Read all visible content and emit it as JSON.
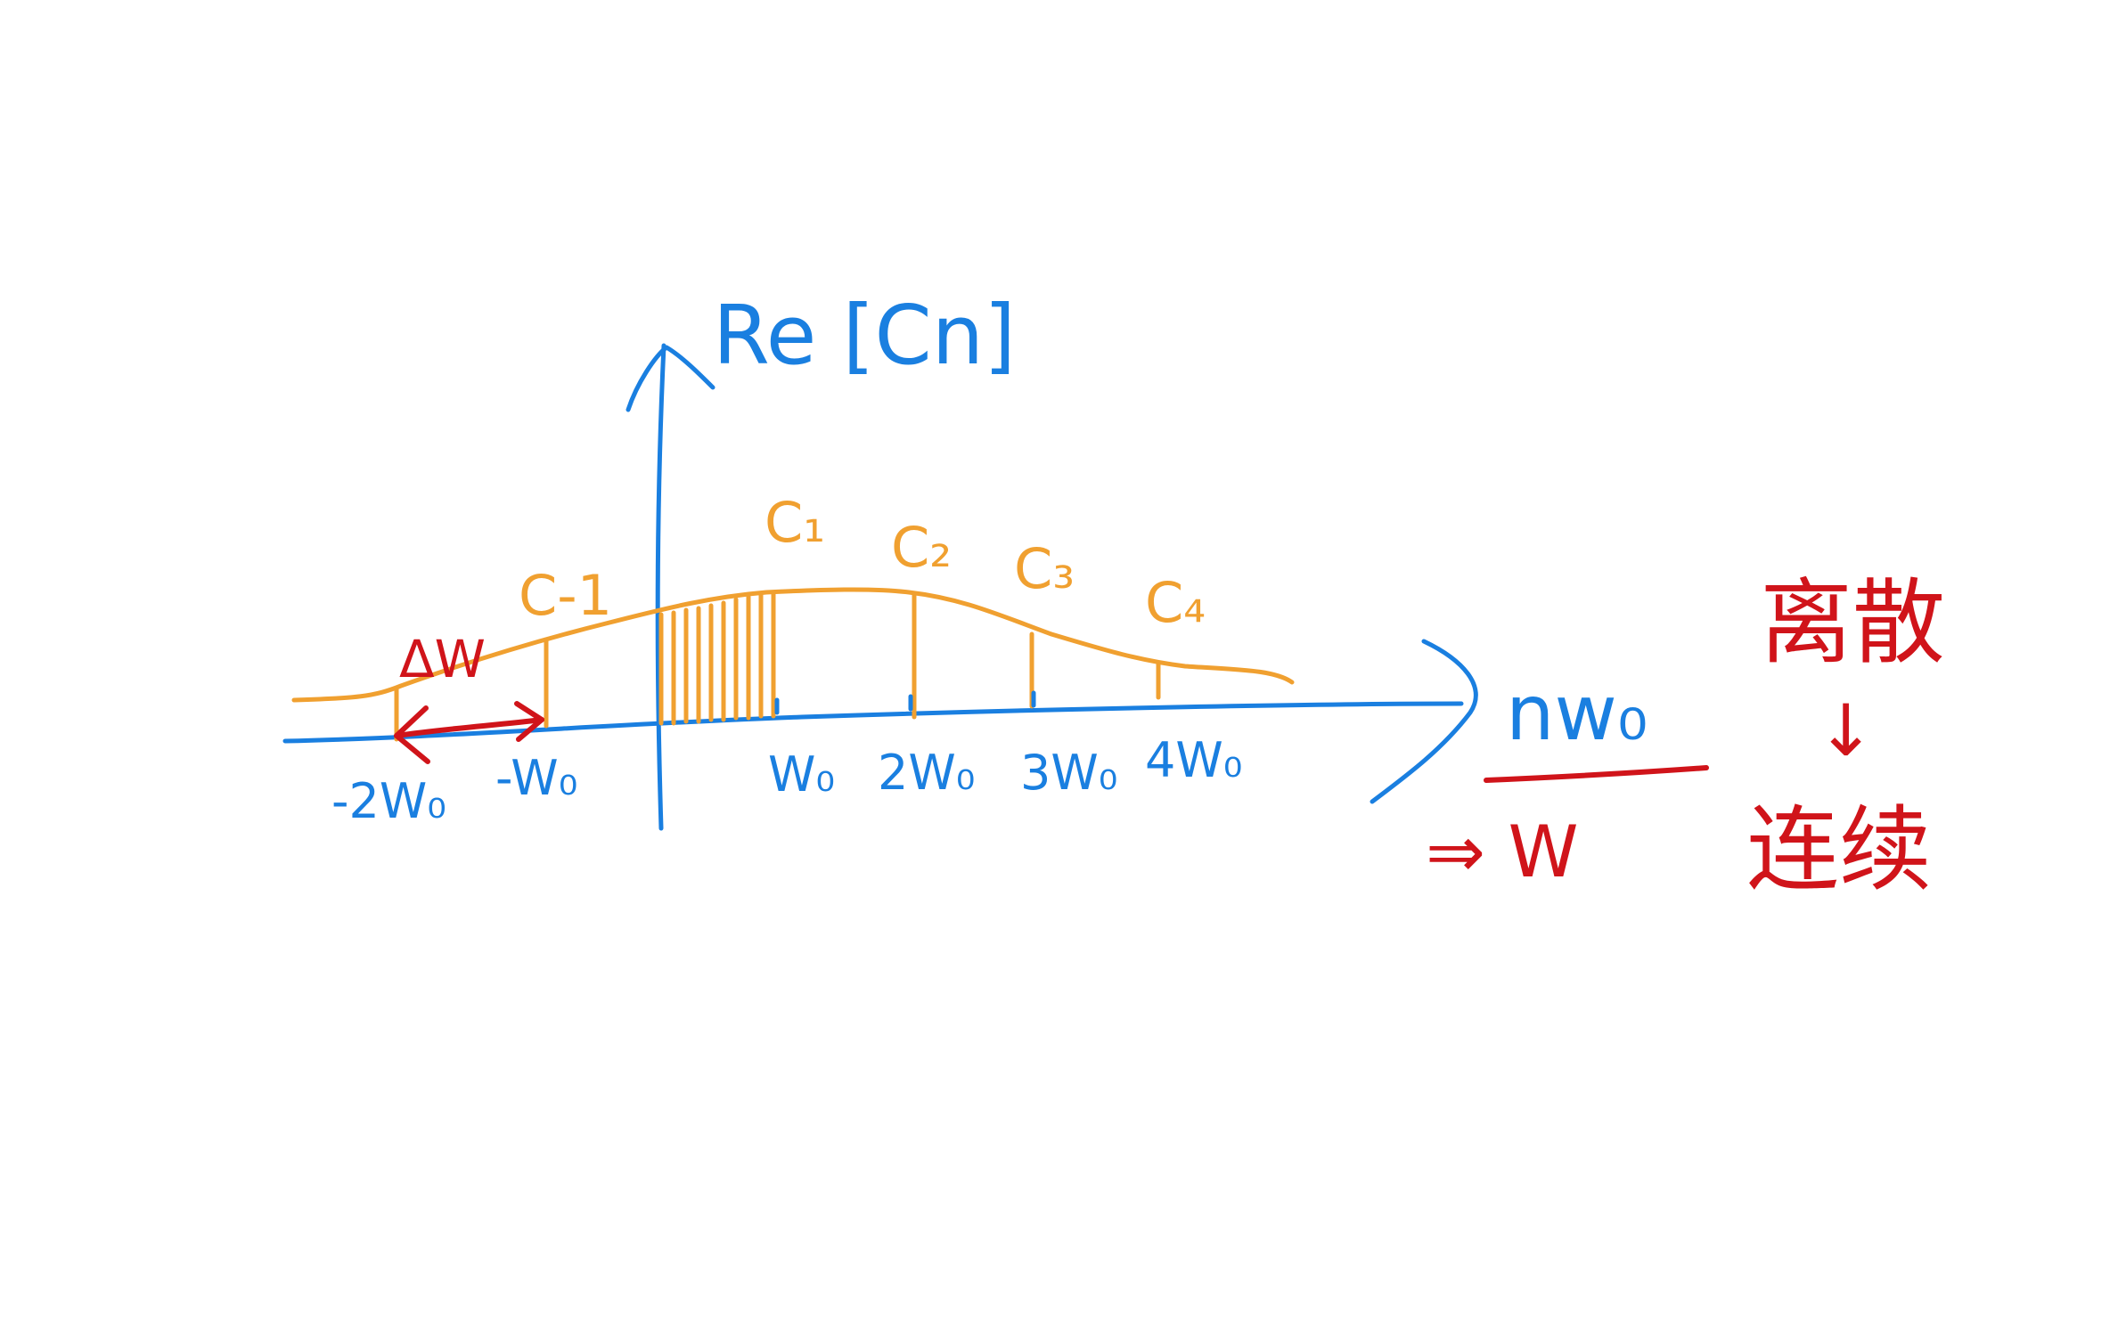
{
  "axis": {
    "y_label": "Re [Cn]",
    "x_label": "nw₀",
    "x_label_limit": "⇒ W"
  },
  "coefficients": {
    "c_minus1": "C-1",
    "c1": "C₁",
    "c2": "C₂",
    "c3": "C₃",
    "c4": "C₄"
  },
  "ticks": {
    "neg2": "-2W₀",
    "neg1": "-W₀",
    "p1": "W₀",
    "p2": "2W₀",
    "p3": "3W₀",
    "p4": "4W₀"
  },
  "delta": "ΔW",
  "notes": {
    "discrete": "离散",
    "arrow": "↓",
    "continuous": "连续"
  },
  "colors": {
    "axis": "#1a7fe0",
    "spectrum": "#f0a030",
    "annotation": "#d0141a"
  }
}
